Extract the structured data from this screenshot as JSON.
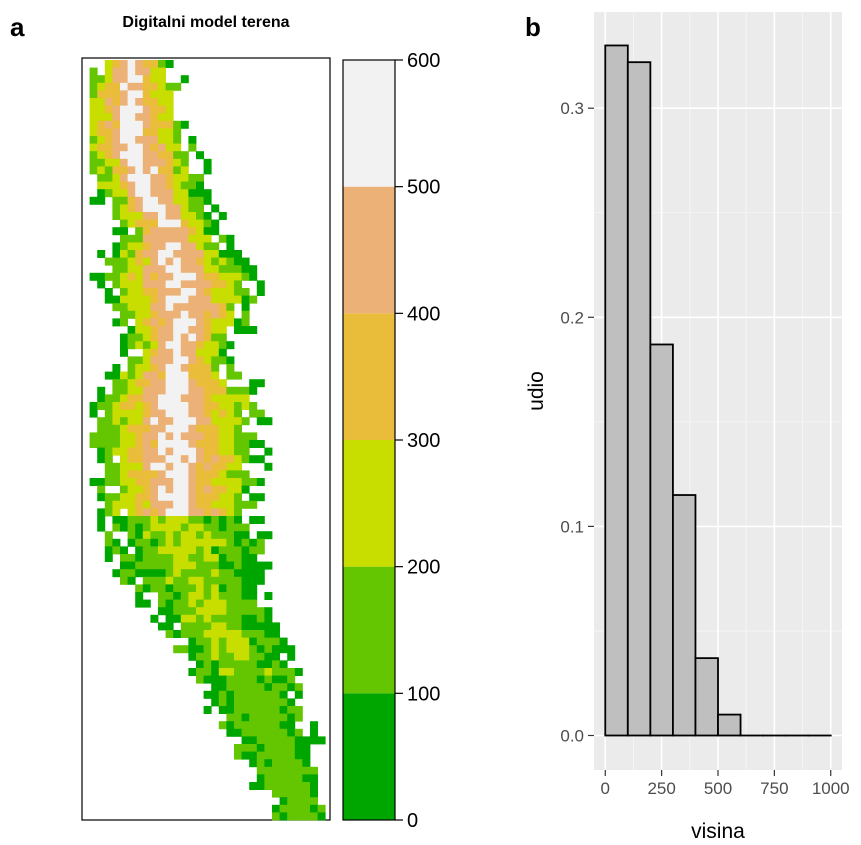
{
  "panel_labels": {
    "a": "a",
    "b": "b"
  },
  "map": {
    "title": "Digitalni model terena",
    "legend": {
      "breaks": [
        0,
        100,
        200,
        300,
        400,
        500,
        600
      ],
      "tick_labels": [
        "0",
        "100",
        "200",
        "300",
        "400",
        "500",
        "600"
      ],
      "colors": [
        "#00A600",
        "#63C600",
        "#C8DD00",
        "#E9BD3A",
        "#ECB176",
        "#F2F2F2"
      ]
    }
  },
  "chart_data": {
    "type": "bar",
    "title": "",
    "xlabel": "visina",
    "ylabel": "udio",
    "x_bins": [
      [
        0,
        100
      ],
      [
        100,
        200
      ],
      [
        200,
        300
      ],
      [
        300,
        400
      ],
      [
        400,
        500
      ],
      [
        500,
        600
      ],
      [
        600,
        700
      ],
      [
        700,
        800
      ],
      [
        800,
        900
      ],
      [
        900,
        1000
      ]
    ],
    "values": [
      0.33,
      0.322,
      0.187,
      0.115,
      0.037,
      0.01,
      0,
      0,
      0,
      0
    ],
    "x_ticks": [
      0,
      250,
      500,
      750,
      1000
    ],
    "x_tick_labels": [
      "0",
      "250",
      "500",
      "750",
      "1000"
    ],
    "y_ticks": [
      0.0,
      0.1,
      0.2,
      0.3
    ],
    "y_tick_labels": [
      "0.0",
      "0.1",
      "0.2",
      "0.3"
    ],
    "xlim": [
      -50,
      1050
    ],
    "ylim": [
      -0.0165,
      0.346
    ],
    "grid": true,
    "bar_color": "#bfbfbf",
    "panel_background": "#ebebeb"
  }
}
